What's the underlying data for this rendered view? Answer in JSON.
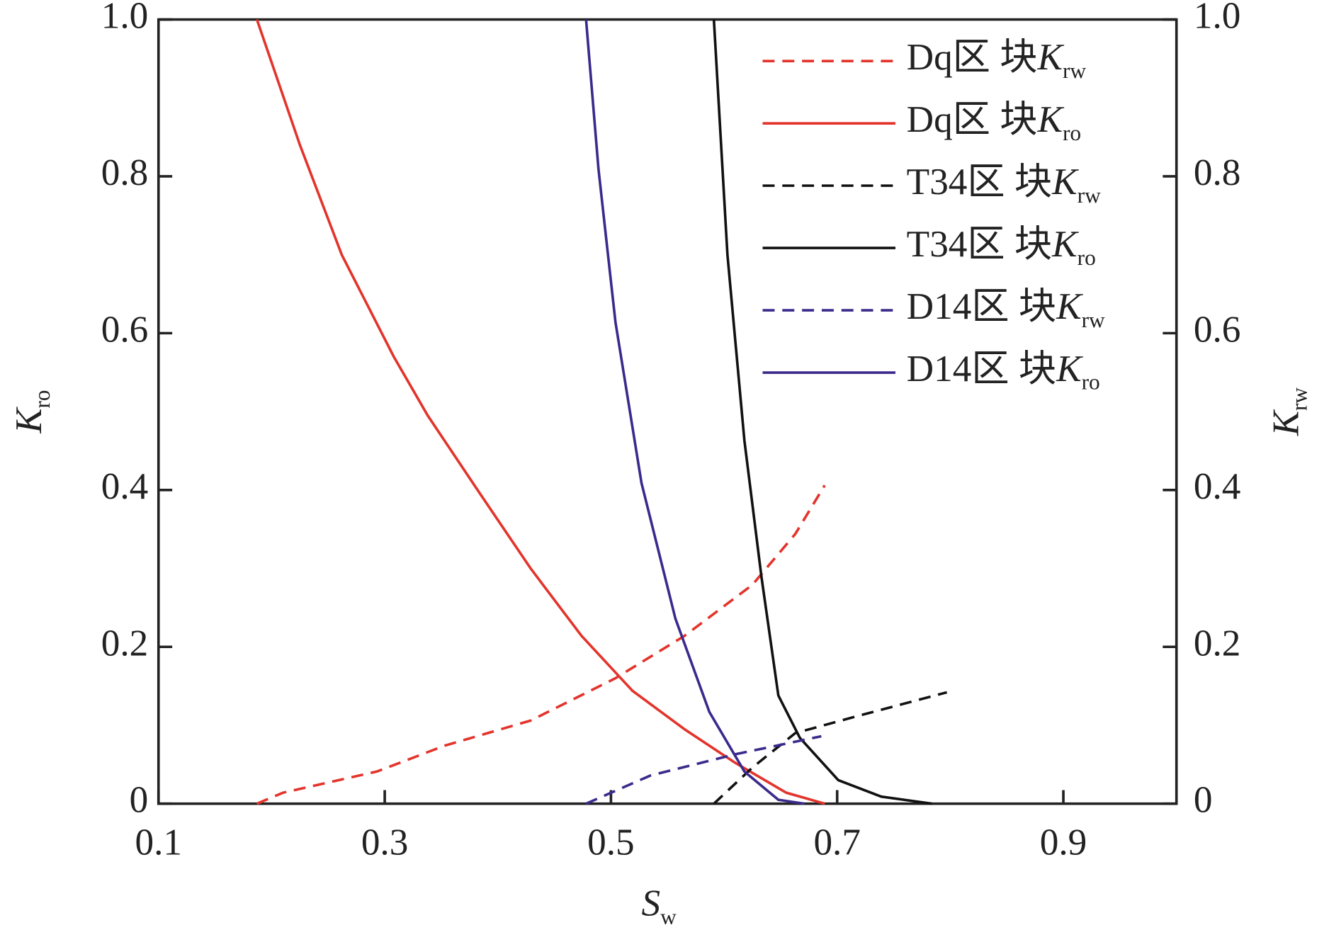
{
  "chart_data": {
    "type": "line",
    "x_label": "Sw",
    "y_label": "Kro",
    "y2_label": "Krw",
    "xlim": [
      0.1,
      1.0
    ],
    "xticks": [
      0.1,
      0.3,
      0.5,
      0.7,
      0.9
    ],
    "ylim": [
      0,
      1
    ],
    "yticks": [
      0,
      0.2,
      0.4,
      0.6,
      0.8,
      {
        "value": 1,
        "label": "1.0"
      }
    ],
    "y2lim": [
      0,
      1
    ],
    "y2ticks": [
      0,
      0.2,
      0.4,
      0.6,
      0.8,
      {
        "value": 1,
        "label": "1.0"
      }
    ],
    "legend": "upper right",
    "series": [
      {
        "name": "Dq区 块Krw",
        "color": "#e3342b",
        "dash": true,
        "axis": "y2",
        "x": [
          0.187,
          0.21,
          0.293,
          0.353,
          0.429,
          0.504,
          0.565,
          0.625,
          0.663,
          0.689
        ],
        "values": [
          0,
          0.014,
          0.041,
          0.074,
          0.106,
          0.16,
          0.214,
          0.279,
          0.344,
          0.406
        ]
      },
      {
        "name": "Dq区 块Kro",
        "color": "#e3342b",
        "dash": false,
        "x": [
          0.187,
          0.225,
          0.262,
          0.308,
          0.338,
          0.383,
          0.429,
          0.474,
          0.519,
          0.565,
          0.61,
          0.655,
          0.689
        ],
        "values": [
          1.0,
          0.84,
          0.7,
          0.57,
          0.495,
          0.398,
          0.3,
          0.214,
          0.144,
          0.095,
          0.052,
          0.014,
          0
        ]
      },
      {
        "name": "T34区 块Krw",
        "color": "#111111",
        "dash": true,
        "axis": "y2",
        "x": [
          0.591,
          0.625,
          0.663,
          0.716,
          0.797
        ],
        "values": [
          0,
          0.046,
          0.09,
          0.111,
          0.142
        ]
      },
      {
        "name": "T34区 块Kro",
        "color": "#111111",
        "dash": false,
        "x": [
          0.591,
          0.603,
          0.618,
          0.633,
          0.648,
          0.667,
          0.701,
          0.739,
          0.784
        ],
        "values": [
          1.0,
          0.7,
          0.463,
          0.29,
          0.138,
          0.084,
          0.03,
          0.009,
          0
        ]
      },
      {
        "name": "D14区 块Krw",
        "color": "#3b2a8c",
        "dash": true,
        "axis": "y2",
        "x": [
          0.478,
          0.535,
          0.61,
          0.686
        ],
        "values": [
          0,
          0.036,
          0.063,
          0.086
        ]
      },
      {
        "name": "D14区 块Kro",
        "color": "#3b2a8c",
        "dash": false,
        "x": [
          0.478,
          0.489,
          0.504,
          0.527,
          0.557,
          0.587,
          0.618,
          0.648,
          0.671
        ],
        "values": [
          1.0,
          0.809,
          0.614,
          0.409,
          0.236,
          0.117,
          0.041,
          0.005,
          0
        ]
      }
    ]
  }
}
